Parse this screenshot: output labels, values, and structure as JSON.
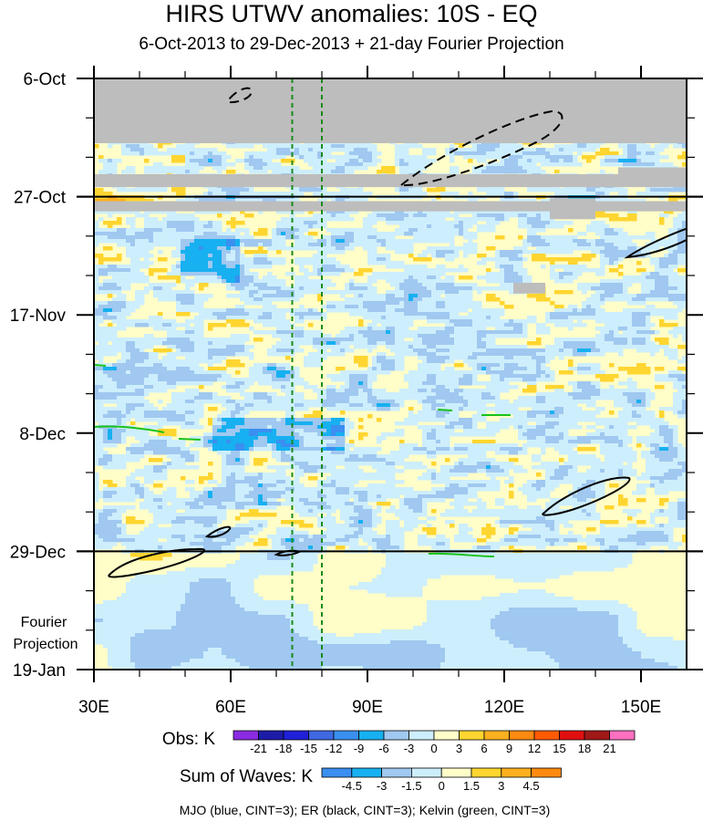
{
  "chart_data": {
    "type": "heatmap",
    "title": "HIRS UTWV anomalies: 10S - EQ",
    "subtitle": "6-Oct-2013 to 29-Dec-2013 + 21-day Fourier Projection",
    "x_ticks": [
      {
        "value": 30,
        "label": "30E"
      },
      {
        "value": 60,
        "label": "60E"
      },
      {
        "value": 90,
        "label": "90E"
      },
      {
        "value": 120,
        "label": "120E"
      },
      {
        "value": 150,
        "label": "150E"
      }
    ],
    "xlim": [
      30,
      160
    ],
    "y_ticks": [
      {
        "day": 0,
        "label": "6-Oct"
      },
      {
        "day": 21,
        "label": "27-Oct"
      },
      {
        "day": 42,
        "label": "17-Nov"
      },
      {
        "day": 63,
        "label": "8-Dec"
      },
      {
        "day": 84,
        "label": "29-Dec"
      },
      {
        "day": 105,
        "label": "19-Jan"
      }
    ],
    "ylim_days": [
      0,
      105
    ],
    "projection_start_day": 84,
    "projection_label_line1": "Fourier",
    "projection_label_line2": "Projection",
    "reference_longitudes": [
      73.5,
      80
    ],
    "missing_data_bands": [
      {
        "day_start": 0,
        "day_end": 11.5,
        "lon_start": 30,
        "lon_end": 160
      },
      {
        "day_start": 17,
        "day_end": 19.3,
        "lon_start": 30,
        "lon_end": 160
      },
      {
        "day_start": 21.8,
        "day_end": 23.6,
        "lon_start": 30,
        "lon_end": 160
      },
      {
        "day_start": 15.8,
        "day_end": 18.5,
        "lon_start": 145,
        "lon_end": 160
      },
      {
        "day_start": 21.3,
        "day_end": 25,
        "lon_start": 130,
        "lon_end": 140
      },
      {
        "day_start": 36.3,
        "day_end": 38.2,
        "lon_start": 122,
        "lon_end": 129
      }
    ],
    "obs_legend": {
      "label": "Obs: K",
      "levels": [
        "-21",
        "-18",
        "-15",
        "-12",
        "-9",
        "-6",
        "-3",
        "0",
        "3",
        "6",
        "9",
        "12",
        "15",
        "18",
        "21"
      ],
      "colors": [
        "#8a2be2",
        "#1c1ca8",
        "#2020d8",
        "#3f68e0",
        "#3a8ff0",
        "#17b0f0",
        "#a0c8f0",
        "#cdeefc",
        "#fffdc8",
        "#ffd530",
        "#ffb020",
        "#ff8a10",
        "#ff5a00",
        "#e01010",
        "#a01818",
        "#ff70c0"
      ]
    },
    "waves_legend": {
      "label": "Sum of Waves: K",
      "levels": [
        "-4.5",
        "-3",
        "-1.5",
        "0",
        "1.5",
        "3",
        "4.5"
      ],
      "colors": [
        "#3a8ff0",
        "#17b0f0",
        "#a0c8f0",
        "#cdeefc",
        "#fffdc8",
        "#ffd530",
        "#ffb020",
        "#ff8a10"
      ]
    },
    "contour_note": "MJO (blue, CINT=3); ER (black, CINT=3); Kelvin (green, CINT=3)"
  }
}
